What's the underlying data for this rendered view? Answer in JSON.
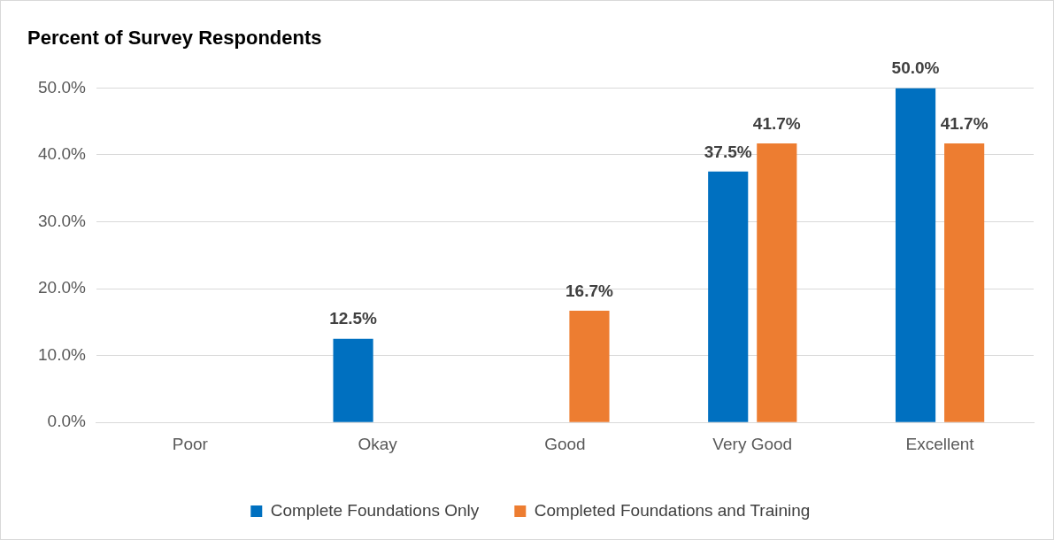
{
  "chart_data": {
    "type": "bar",
    "title": "Percent of Survey Respondents",
    "categories": [
      "Poor",
      "Okay",
      "Good",
      "Very Good",
      "Excellent"
    ],
    "series": [
      {
        "name": "Complete Foundations Only",
        "color": "#0070c0",
        "values": [
          0,
          12.5,
          0,
          37.5,
          50.0
        ],
        "value_labels": [
          null,
          "12.5%",
          null,
          "37.5%",
          "50.0%"
        ]
      },
      {
        "name": "Completed Foundations and Training",
        "color": "#ed7d31",
        "values": [
          0,
          0,
          16.7,
          41.7,
          41.7
        ],
        "value_labels": [
          null,
          null,
          "16.7%",
          "41.7%",
          "41.7%"
        ]
      }
    ],
    "ylim": [
      0,
      50
    ],
    "yticks": [
      {
        "value": 0,
        "label": "0.0%"
      },
      {
        "value": 10,
        "label": "10.0%"
      },
      {
        "value": 20,
        "label": "20.0%"
      },
      {
        "value": 30,
        "label": "30.0%"
      },
      {
        "value": 40,
        "label": "40.0%"
      },
      {
        "value": 50,
        "label": "50.0%"
      }
    ],
    "grid": "y",
    "legend": "bottom"
  }
}
